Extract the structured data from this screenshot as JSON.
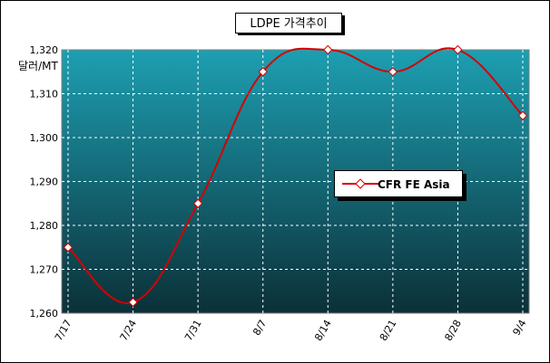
{
  "chart_data": {
    "type": "line",
    "title": "LDPE 가격추이",
    "ylabel": "달러/MT",
    "xlabel": "",
    "categories": [
      "7/17",
      "7/24",
      "7/31",
      "8/7",
      "8/14",
      "8/21",
      "8/28",
      "9/4"
    ],
    "y_ticks": [
      "1,260",
      "1,270",
      "1,280",
      "1,290",
      "1,300",
      "1,310",
      "1,320"
    ],
    "ylim": [
      1260,
      1320
    ],
    "grid": true,
    "legend_position": "center-right",
    "series": [
      {
        "name": "CFR FE Asia",
        "color": "#d40000",
        "values": [
          1275,
          1262.5,
          1285,
          1315,
          1320,
          1315,
          1320,
          1305
        ]
      }
    ],
    "colors": {
      "plot_background_top": "#1d9fb2",
      "plot_background_bottom": "#0b3038",
      "gridline": "#ffffff",
      "marker_fill": "#ffffff"
    }
  }
}
